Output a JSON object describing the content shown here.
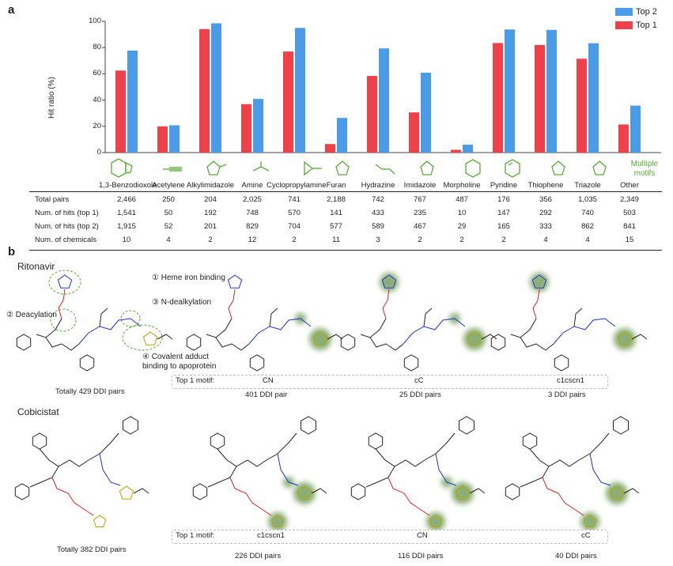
{
  "panel_a": {
    "letter": "a",
    "chart_data": {
      "type": "bar",
      "ylabel": "Hit ratio (%)",
      "ylim": [
        0,
        100
      ],
      "yticks": [
        "0",
        "20",
        "40",
        "60",
        "80",
        "100"
      ],
      "categories": [
        "1,3-Benzodioxole",
        "Acetylene",
        "Alkylimidazole",
        "Amine",
        "Cyclopropylamine",
        "Furan",
        "Hydrazine",
        "Imidazole",
        "Morpholine",
        "Pyridine",
        "Thiophene",
        "Triazole",
        "Other"
      ],
      "series": [
        {
          "name": "Top 1",
          "color": "#f0404a",
          "values": [
            62.5,
            20.0,
            94.1,
            36.9,
            77.0,
            6.5,
            58.4,
            30.6,
            2.1,
            83.5,
            82.0,
            71.5,
            21.4
          ]
        },
        {
          "name": "Top 2",
          "color": "#4a9be8",
          "values": [
            77.7,
            20.8,
            98.5,
            40.9,
            95.0,
            26.4,
            79.4,
            60.9,
            6.0,
            93.8,
            93.5,
            83.3,
            35.8
          ]
        }
      ],
      "legend": [
        "Top 2",
        "Top 1"
      ],
      "other_label": [
        "Multiple",
        "motifs"
      ]
    },
    "table": {
      "rows": [
        {
          "label": "Total pairs",
          "values": [
            "2,466",
            "250",
            "204",
            "2,025",
            "741",
            "2,188",
            "742",
            "767",
            "487",
            "176",
            "356",
            "1,035",
            "2,349"
          ]
        },
        {
          "label": "Num. of hits (top 1)",
          "values": [
            "1,541",
            "50",
            "192",
            "748",
            "570",
            "141",
            "433",
            "235",
            "10",
            "147",
            "292",
            "740",
            "503"
          ]
        },
        {
          "label": "Num. of hits (top 2)",
          "values": [
            "1,915",
            "52",
            "201",
            "829",
            "704",
            "577",
            "589",
            "467",
            "29",
            "165",
            "333",
            "862",
            "841"
          ]
        },
        {
          "label": "Num. of chemicals",
          "values": [
            "10",
            "4",
            "2",
            "12",
            "2",
            "11",
            "3",
            "2",
            "2",
            "2",
            "4",
            "4",
            "15"
          ]
        }
      ]
    }
  },
  "panel_b": {
    "letter": "b",
    "ritonavir": {
      "name": "Ritonavir",
      "annotations": {
        "heme": "① Heme iron binding",
        "deacylation": "② Deacylation",
        "ndealk": "③ N-dealkylation",
        "covalent_1": "④ Covalent adduct",
        "covalent_2": "binding to apoprotein"
      },
      "total": "Totally 429 DDI pairs",
      "motif_label": "Top 1 motif:",
      "motifs": [
        "CN",
        "cC",
        "c1cscn1"
      ],
      "counts": [
        "401 DDI pair",
        "25 DDI pairs",
        "3 DDI pairs"
      ]
    },
    "cobicistat": {
      "name": "Cobicistat",
      "total": "Totally 382 DDI pairs",
      "motif_label": "Top 1 motif:",
      "motifs": [
        "c1cscn1",
        "CN",
        "cC"
      ],
      "counts": [
        "226 DDI pairs",
        "116 DDI pairs",
        "40 DDI pairs"
      ]
    }
  },
  "colors": {
    "top1": "#f0404a",
    "top2": "#4a9be8",
    "motif_green": "#5aa83c",
    "glow": "#3c7a1e",
    "N": "#2233cc",
    "O": "#dd2222",
    "S": "#b8a000"
  }
}
